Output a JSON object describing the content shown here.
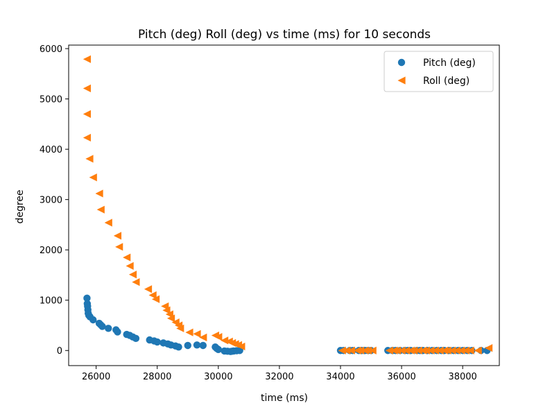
{
  "chart_data": {
    "type": "scatter",
    "title": "Pitch (deg) Roll (deg) vs time (ms) for 10 seconds",
    "xlabel": "time (ms)",
    "ylabel": "degree",
    "xlim": [
      25100,
      39200
    ],
    "ylim": [
      -300,
      6070
    ],
    "xticks": [
      "26000",
      "28000",
      "30000",
      "32000",
      "34000",
      "36000",
      "38000"
    ],
    "yticks": [
      "0",
      "1000",
      "2000",
      "3000",
      "4000",
      "5000",
      "6000"
    ],
    "legend_position": "top-right",
    "series": [
      {
        "name": "Pitch (deg)",
        "marker": "circle",
        "color": "#1f77b4",
        "points": [
          [
            25700,
            1040
          ],
          [
            25710,
            930
          ],
          [
            25720,
            880
          ],
          [
            25730,
            810
          ],
          [
            25740,
            740
          ],
          [
            25760,
            700
          ],
          [
            25800,
            670
          ],
          [
            25900,
            610
          ],
          [
            26100,
            540
          ],
          [
            26150,
            510
          ],
          [
            26200,
            480
          ],
          [
            26400,
            440
          ],
          [
            26650,
            410
          ],
          [
            26700,
            370
          ],
          [
            27000,
            320
          ],
          [
            27100,
            300
          ],
          [
            27200,
            270
          ],
          [
            27300,
            240
          ],
          [
            27750,
            210
          ],
          [
            27900,
            190
          ],
          [
            28000,
            170
          ],
          [
            28200,
            150
          ],
          [
            28350,
            130
          ],
          [
            28450,
            110
          ],
          [
            28600,
            90
          ],
          [
            28700,
            70
          ],
          [
            29000,
            100
          ],
          [
            29300,
            110
          ],
          [
            29500,
            100
          ],
          [
            29900,
            70
          ],
          [
            29950,
            40
          ],
          [
            30000,
            20
          ],
          [
            30200,
            -10
          ],
          [
            30300,
            -15
          ],
          [
            30400,
            -20
          ],
          [
            30450,
            -15
          ],
          [
            30500,
            -10
          ],
          [
            30600,
            -5
          ],
          [
            30700,
            0
          ],
          [
            34000,
            0
          ],
          [
            34100,
            0
          ],
          [
            34300,
            0
          ],
          [
            34400,
            0
          ],
          [
            34600,
            0
          ],
          [
            34700,
            0
          ],
          [
            34800,
            0
          ],
          [
            34900,
            0
          ],
          [
            35000,
            0
          ],
          [
            35550,
            0
          ],
          [
            35700,
            0
          ],
          [
            35800,
            0
          ],
          [
            35950,
            0
          ],
          [
            36100,
            0
          ],
          [
            36200,
            0
          ],
          [
            36300,
            0
          ],
          [
            36500,
            0
          ],
          [
            36600,
            0
          ],
          [
            36700,
            0
          ],
          [
            36850,
            0
          ],
          [
            37000,
            0
          ],
          [
            37150,
            0
          ],
          [
            37300,
            0
          ],
          [
            37400,
            0
          ],
          [
            37550,
            0
          ],
          [
            37700,
            0
          ],
          [
            37850,
            0
          ],
          [
            38000,
            0
          ],
          [
            38150,
            0
          ],
          [
            38300,
            0
          ],
          [
            38600,
            0
          ],
          [
            38800,
            0
          ]
        ]
      },
      {
        "name": "Roll (deg)",
        "marker": "triangle-left",
        "color": "#ff7f0e",
        "points": [
          [
            25700,
            5790
          ],
          [
            25700,
            5210
          ],
          [
            25700,
            4700
          ],
          [
            25700,
            4230
          ],
          [
            25780,
            3810
          ],
          [
            25900,
            3440
          ],
          [
            26100,
            3120
          ],
          [
            26150,
            2800
          ],
          [
            26400,
            2540
          ],
          [
            26700,
            2280
          ],
          [
            26750,
            2060
          ],
          [
            27000,
            1850
          ],
          [
            27100,
            1680
          ],
          [
            27200,
            1510
          ],
          [
            27300,
            1360
          ],
          [
            27700,
            1220
          ],
          [
            27850,
            1100
          ],
          [
            27950,
            1020
          ],
          [
            28250,
            880
          ],
          [
            28300,
            800
          ],
          [
            28400,
            720
          ],
          [
            28450,
            640
          ],
          [
            28600,
            560
          ],
          [
            28700,
            500
          ],
          [
            28750,
            440
          ],
          [
            29050,
            360
          ],
          [
            29300,
            330
          ],
          [
            29500,
            260
          ],
          [
            29900,
            300
          ],
          [
            30000,
            270
          ],
          [
            30200,
            200
          ],
          [
            30350,
            180
          ],
          [
            30450,
            150
          ],
          [
            30550,
            130
          ],
          [
            30650,
            110
          ],
          [
            30750,
            80
          ],
          [
            34050,
            0
          ],
          [
            34200,
            0
          ],
          [
            34350,
            0
          ],
          [
            34550,
            0
          ],
          [
            34650,
            0
          ],
          [
            34800,
            0
          ],
          [
            34900,
            0
          ],
          [
            35050,
            0
          ],
          [
            35600,
            0
          ],
          [
            35750,
            0
          ],
          [
            35850,
            0
          ],
          [
            36000,
            0
          ],
          [
            36150,
            0
          ],
          [
            36300,
            0
          ],
          [
            36400,
            0
          ],
          [
            36550,
            0
          ],
          [
            36700,
            0
          ],
          [
            36800,
            0
          ],
          [
            36950,
            0
          ],
          [
            37100,
            0
          ],
          [
            37250,
            0
          ],
          [
            37400,
            0
          ],
          [
            37500,
            0
          ],
          [
            37650,
            0
          ],
          [
            37800,
            0
          ],
          [
            37950,
            0
          ],
          [
            38100,
            0
          ],
          [
            38250,
            0
          ],
          [
            38500,
            0
          ],
          [
            38850,
            50
          ]
        ]
      }
    ]
  }
}
